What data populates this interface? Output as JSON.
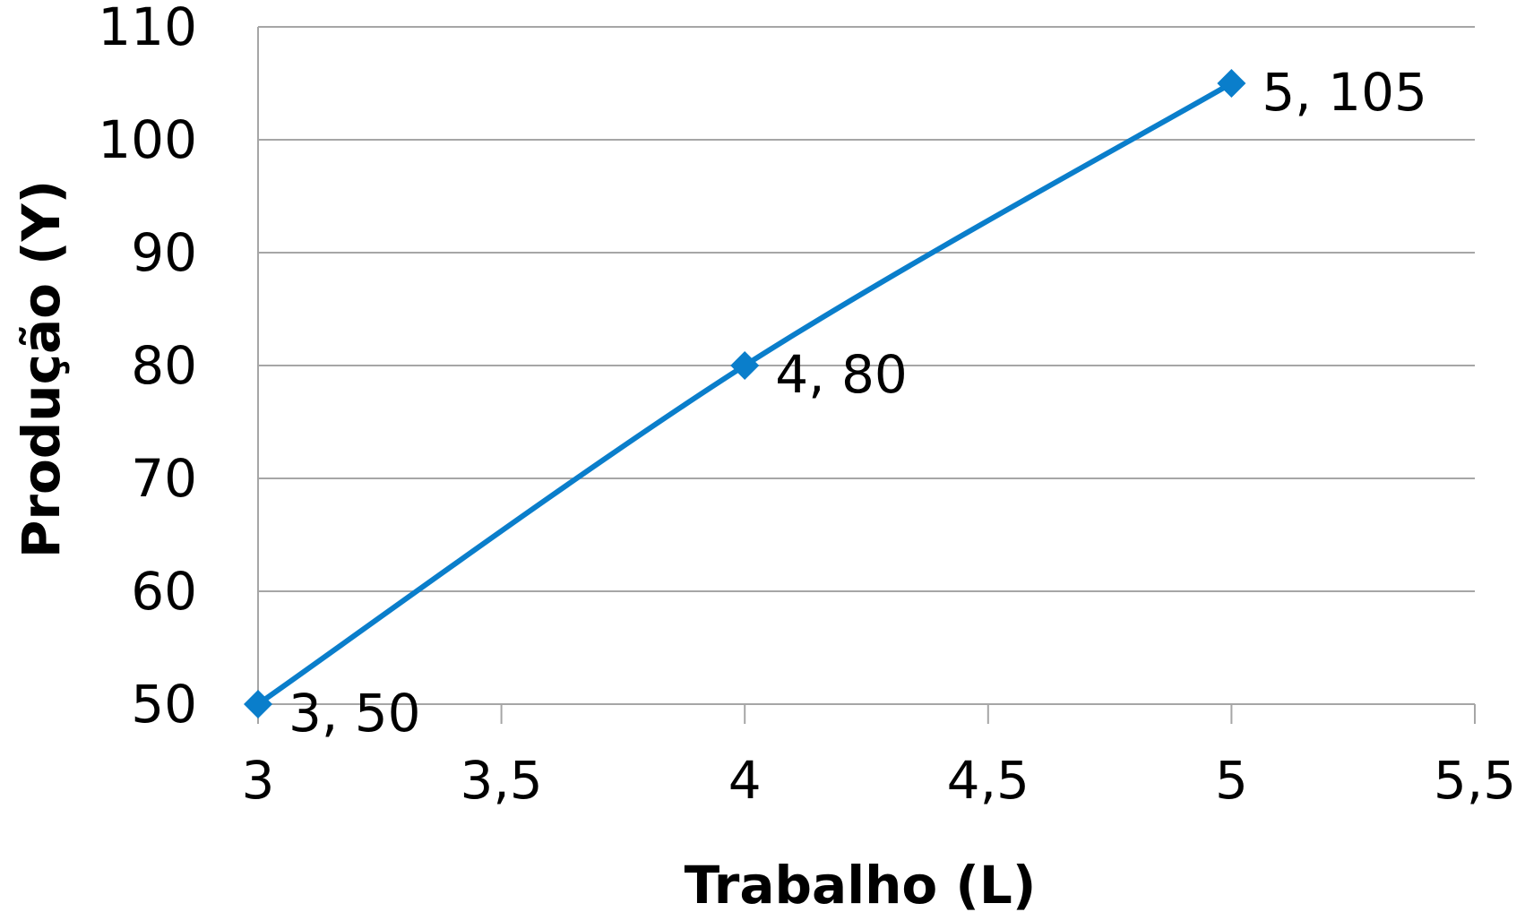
{
  "chart_data": {
    "type": "line",
    "title": "",
    "xlabel": "Trabalho (L)",
    "ylabel": "Produção (Y)",
    "xlim": [
      3,
      5.5
    ],
    "ylim": [
      50,
      110
    ],
    "x_ticks": [
      3,
      3.5,
      4,
      4.5,
      5,
      5.5
    ],
    "x_tick_labels": [
      "3",
      "3,5",
      "4",
      "4,5",
      "5",
      "5,5"
    ],
    "y_ticks": [
      50,
      60,
      70,
      80,
      90,
      100,
      110
    ],
    "y_tick_labels": [
      "50",
      "60",
      "70",
      "80",
      "90",
      "100",
      "110"
    ],
    "grid": "horizontal",
    "legend": "none",
    "series": [
      {
        "color": "#0a7ecb",
        "marker": "diamond",
        "smooth": true,
        "points": [
          {
            "x": 3,
            "y": 50,
            "label": "3, 50"
          },
          {
            "x": 4,
            "y": 80,
            "label": "4, 80"
          },
          {
            "x": 5,
            "y": 105,
            "label": "5, 105"
          }
        ]
      }
    ]
  }
}
